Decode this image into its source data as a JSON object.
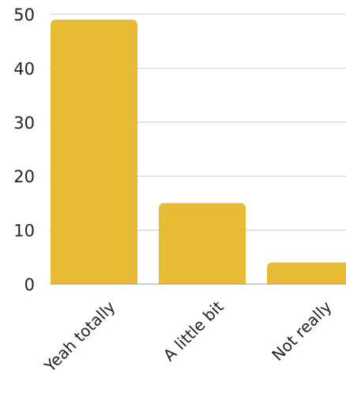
{
  "chart_data": {
    "type": "bar",
    "categories": [
      "Yeah totally",
      "A little bit",
      "Not really"
    ],
    "values": [
      49,
      15,
      4
    ],
    "title": "",
    "xlabel": "",
    "ylabel": "",
    "ylim": [
      0,
      50
    ],
    "yticks": [
      0,
      10,
      20,
      30,
      40,
      50
    ],
    "grid": true,
    "legend": "none",
    "bar_color": "#E8BB34"
  }
}
